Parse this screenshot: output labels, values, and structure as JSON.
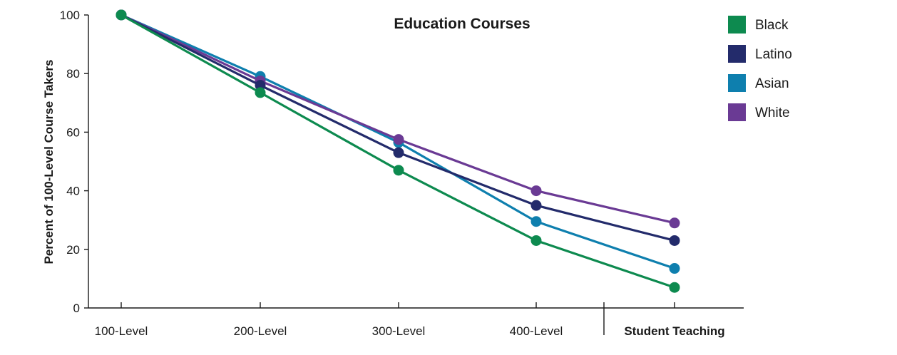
{
  "chart_data": {
    "type": "line",
    "title": "Education Courses",
    "ylabel": "Percent of 100-Level Course Takers",
    "xlabel": "",
    "categories": [
      "100-Level",
      "200-Level",
      "300-Level",
      "400-Level",
      "Student Teaching"
    ],
    "bold_categories": [
      "Student Teaching"
    ],
    "ylim": [
      0,
      100
    ],
    "yticks": [
      0,
      20,
      40,
      60,
      80,
      100
    ],
    "grid": false,
    "legend_position": "top-right",
    "series": [
      {
        "name": "Black",
        "color": "#0d8a4f",
        "values": [
          100,
          73.5,
          47,
          23,
          7
        ]
      },
      {
        "name": "Latino",
        "color": "#232b6b",
        "values": [
          100,
          76,
          53,
          35,
          23
        ]
      },
      {
        "name": "Asian",
        "color": "#0e7fae",
        "values": [
          100,
          79,
          56.5,
          29.5,
          13.5
        ]
      },
      {
        "name": "White",
        "color": "#6a3a94",
        "values": [
          100,
          77.5,
          57.5,
          40,
          29
        ]
      }
    ],
    "draw_order": [
      "Asian",
      "White",
      "Latino",
      "Black"
    ]
  }
}
